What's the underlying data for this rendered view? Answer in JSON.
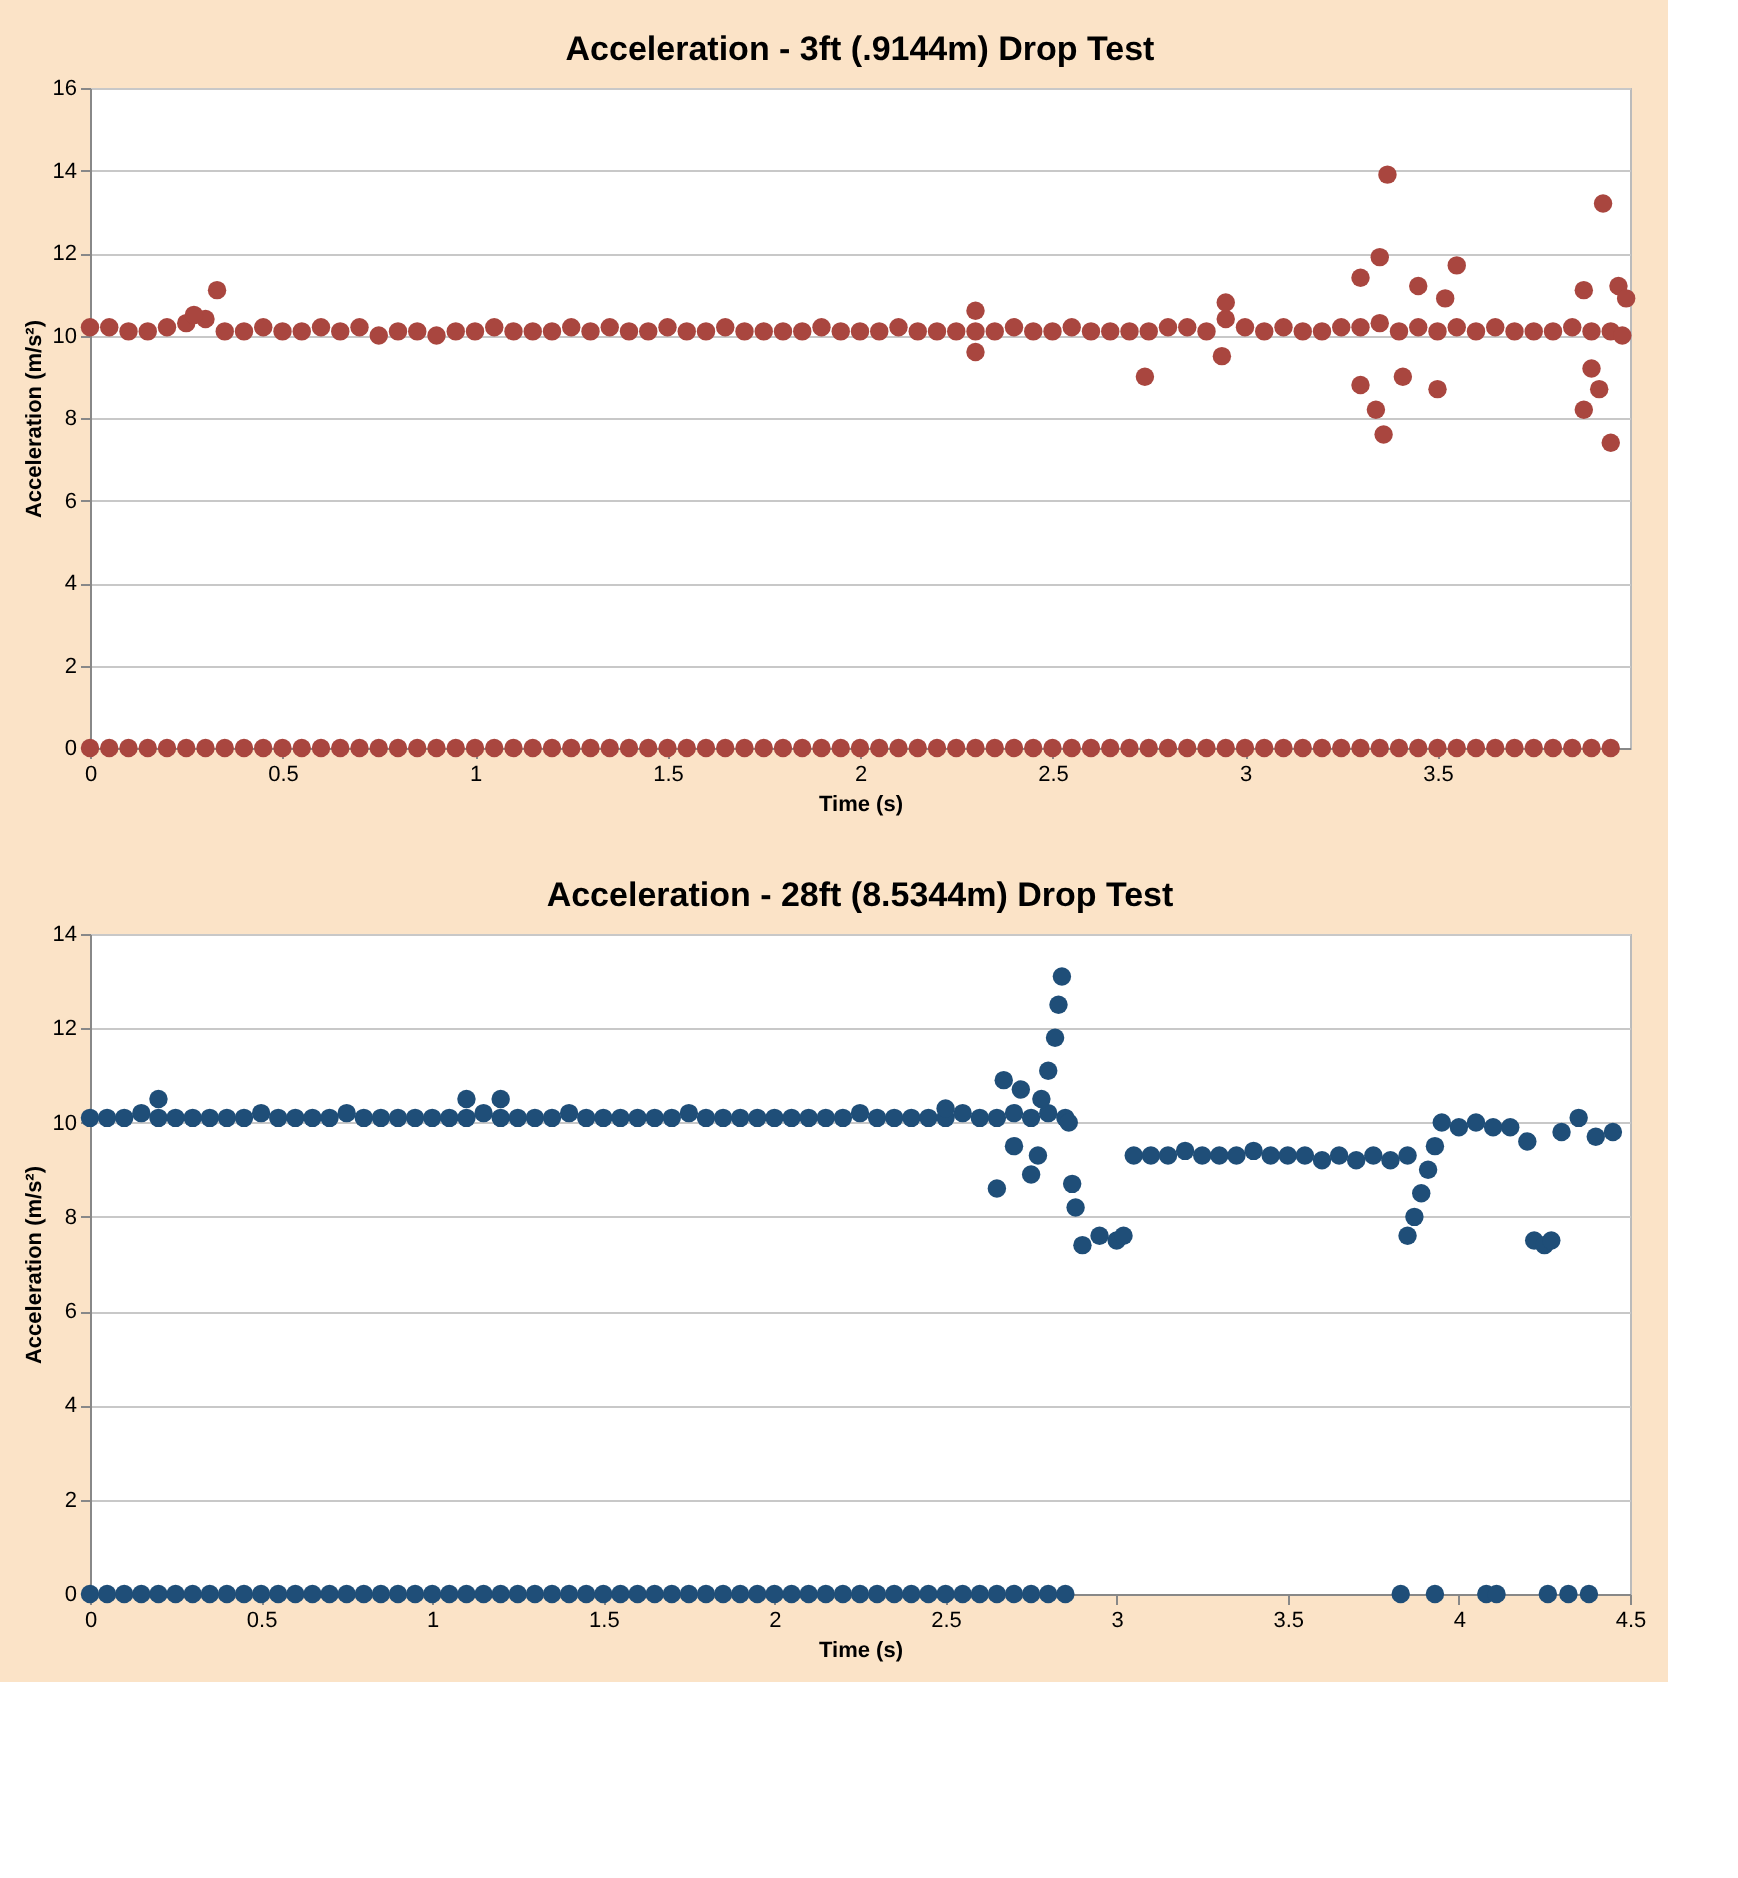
{
  "chart_data": [
    {
      "type": "scatter",
      "title": "Acceleration - 3ft (.9144m) Drop Test",
      "xlabel": "Time (s)",
      "ylabel": "Acceleration (m/s²)",
      "xlim": [
        0,
        4
      ],
      "xticks": [
        0,
        0.5,
        1,
        1.5,
        2,
        2.5,
        3,
        3.5
      ],
      "ylim": [
        0,
        16
      ],
      "yticks": [
        0,
        2,
        4,
        6,
        8,
        10,
        12,
        14,
        16
      ],
      "grid": "y",
      "marker": "circle",
      "series": [
        {
          "color": "#a9463f",
          "x": [
            0,
            0.05,
            0.1,
            0.15,
            0.2,
            0.25,
            0.3,
            0.35,
            0.4,
            0.45,
            0.5,
            0.55,
            0.6,
            0.65,
            0.7,
            0.75,
            0.8,
            0.85,
            0.9,
            0.95,
            1,
            1.05,
            1.1,
            1.15,
            1.2,
            1.25,
            1.3,
            1.35,
            1.4,
            1.45,
            1.5,
            1.55,
            1.6,
            1.65,
            1.7,
            1.75,
            1.8,
            1.85,
            1.9,
            1.95,
            2,
            2.05,
            2.1,
            2.15,
            2.2,
            2.25,
            2.3,
            2.35,
            2.4,
            2.45,
            2.5,
            2.55,
            2.6,
            2.65,
            2.7,
            2.75,
            2.8,
            2.85,
            2.9,
            2.95,
            3,
            3.05,
            3.1,
            3.15,
            3.2,
            3.25,
            3.3,
            3.35,
            3.4,
            3.45,
            3.5,
            3.55,
            3.6,
            3.65,
            3.7,
            3.75,
            3.8,
            3.85,
            3.9,
            3.95
          ],
          "values": [
            10.2,
            10.2,
            10.1,
            10.1,
            10.2,
            10.3,
            10.4,
            10.1,
            10.1,
            10.2,
            10.1,
            10.1,
            10.2,
            10.1,
            10.2,
            10.0,
            10.1,
            10.1,
            10.0,
            10.1,
            10.1,
            10.2,
            10.1,
            10.1,
            10.1,
            10.2,
            10.1,
            10.2,
            10.1,
            10.1,
            10.2,
            10.1,
            10.1,
            10.2,
            10.1,
            10.1,
            10.1,
            10.1,
            10.2,
            10.1,
            10.1,
            10.1,
            10.2,
            10.1,
            10.1,
            10.1,
            10.1,
            10.1,
            10.2,
            10.1,
            10.1,
            10.2,
            10.1,
            10.1,
            10.1,
            10.1,
            10.2,
            10.2,
            10.1,
            10.4,
            10.2,
            10.1,
            10.2,
            10.1,
            10.1,
            10.2,
            10.2,
            10.3,
            10.1,
            10.2,
            10.1,
            10.2,
            10.1,
            10.2,
            10.1,
            10.1,
            10.1,
            10.2,
            10.1,
            10.1
          ]
        },
        {
          "color": "#a9463f",
          "x": [
            0.33,
            0.27,
            2.3,
            2.3,
            2.74,
            2.95,
            2.94,
            3.3,
            3.3,
            3.34,
            3.36,
            3.37,
            3.35,
            3.41,
            3.45,
            3.5,
            3.52,
            3.55,
            3.88,
            3.88,
            3.9,
            3.92,
            3.93,
            3.95,
            3.97,
            3.98,
            3.99
          ],
          "values": [
            11.1,
            10.5,
            10.6,
            9.6,
            9.0,
            10.8,
            9.5,
            11.4,
            8.8,
            8.2,
            7.6,
            13.9,
            11.9,
            9.0,
            11.2,
            8.7,
            10.9,
            11.7,
            11.1,
            8.2,
            9.2,
            8.7,
            13.2,
            7.4,
            11.2,
            10.0,
            10.9
          ]
        },
        {
          "color": "#a9463f",
          "x": [
            0,
            0.05,
            0.1,
            0.15,
            0.2,
            0.25,
            0.3,
            0.35,
            0.4,
            0.45,
            0.5,
            0.55,
            0.6,
            0.65,
            0.7,
            0.75,
            0.8,
            0.85,
            0.9,
            0.95,
            1,
            1.05,
            1.1,
            1.15,
            1.2,
            1.25,
            1.3,
            1.35,
            1.4,
            1.45,
            1.5,
            1.55,
            1.6,
            1.65,
            1.7,
            1.75,
            1.8,
            1.85,
            1.9,
            1.95,
            2,
            2.05,
            2.1,
            2.15,
            2.2,
            2.25,
            2.3,
            2.35,
            2.4,
            2.45,
            2.5,
            2.55,
            2.6,
            2.65,
            2.7,
            2.75,
            2.8,
            2.85,
            2.9,
            2.95,
            3,
            3.05,
            3.1,
            3.15,
            3.2,
            3.25,
            3.3,
            3.35,
            3.4,
            3.45,
            3.5,
            3.55,
            3.6,
            3.65,
            3.7,
            3.75,
            3.8,
            3.85,
            3.9,
            3.95
          ],
          "values": [
            0,
            0,
            0,
            0,
            0,
            0,
            0,
            0,
            0,
            0,
            0,
            0,
            0,
            0,
            0,
            0,
            0,
            0,
            0,
            0,
            0,
            0,
            0,
            0,
            0,
            0,
            0,
            0,
            0,
            0,
            0,
            0,
            0,
            0,
            0,
            0,
            0,
            0,
            0,
            0,
            0,
            0,
            0,
            0,
            0,
            0,
            0,
            0,
            0,
            0,
            0,
            0,
            0,
            0,
            0,
            0,
            0,
            0,
            0,
            0,
            0,
            0,
            0,
            0,
            0,
            0,
            0,
            0,
            0,
            0,
            0,
            0,
            0,
            0,
            0,
            0,
            0,
            0,
            0,
            0
          ]
        }
      ]
    },
    {
      "type": "scatter",
      "title": "Acceleration - 28ft (8.5344m) Drop Test",
      "xlabel": "Time (s)",
      "ylabel": "Acceleration (m/s²)",
      "xlim": [
        0,
        4.5
      ],
      "xticks": [
        0,
        0.5,
        1,
        1.5,
        2,
        2.5,
        3,
        3.5,
        4,
        4.5
      ],
      "ylim": [
        0,
        14
      ],
      "yticks": [
        0,
        2,
        4,
        6,
        8,
        10,
        12,
        14
      ],
      "grid": "y",
      "marker": "circle",
      "series": [
        {
          "color": "#1f4e78",
          "x": [
            0,
            0.05,
            0.1,
            0.15,
            0.2,
            0.25,
            0.3,
            0.35,
            0.4,
            0.45,
            0.5,
            0.55,
            0.6,
            0.65,
            0.7,
            0.75,
            0.8,
            0.85,
            0.9,
            0.95,
            1,
            1.05,
            1.1,
            1.15,
            1.2,
            1.25,
            1.3,
            1.35,
            1.4,
            1.45,
            1.5,
            1.55,
            1.6,
            1.65,
            1.7,
            1.75,
            1.8,
            1.85,
            1.9,
            1.95,
            2,
            2.05,
            2.1,
            2.15,
            2.2,
            2.25,
            2.3,
            2.35,
            2.4,
            2.45,
            2.5,
            2.55,
            2.6,
            2.65,
            2.7,
            2.75,
            2.8,
            2.85,
            3.05,
            3.1,
            3.15,
            3.2,
            3.25,
            3.3,
            3.35,
            3.4,
            3.45,
            3.5,
            3.55,
            3.6,
            3.65,
            3.7,
            3.75,
            3.8,
            3.85,
            4.0,
            4.05,
            4.1,
            4.15,
            4.2,
            4.3,
            4.35,
            4.4,
            4.45
          ],
          "values": [
            10.1,
            10.1,
            10.1,
            10.2,
            10.1,
            10.1,
            10.1,
            10.1,
            10.1,
            10.1,
            10.2,
            10.1,
            10.1,
            10.1,
            10.1,
            10.2,
            10.1,
            10.1,
            10.1,
            10.1,
            10.1,
            10.1,
            10.1,
            10.2,
            10.1,
            10.1,
            10.1,
            10.1,
            10.2,
            10.1,
            10.1,
            10.1,
            10.1,
            10.1,
            10.1,
            10.2,
            10.1,
            10.1,
            10.1,
            10.1,
            10.1,
            10.1,
            10.1,
            10.1,
            10.1,
            10.2,
            10.1,
            10.1,
            10.1,
            10.1,
            10.1,
            10.2,
            10.1,
            10.1,
            10.2,
            10.1,
            10.2,
            10.1,
            9.3,
            9.3,
            9.3,
            9.4,
            9.3,
            9.3,
            9.3,
            9.4,
            9.3,
            9.3,
            9.3,
            9.2,
            9.3,
            9.2,
            9.3,
            9.2,
            9.3,
            9.9,
            10.0,
            9.9,
            9.9,
            9.6,
            9.8,
            10.1,
            9.7,
            9.8
          ]
        },
        {
          "color": "#1f4e78",
          "x": [
            0.2,
            1.1,
            1.2,
            2.5,
            2.65,
            2.67,
            2.72,
            2.7,
            2.75,
            2.77,
            2.78,
            2.8,
            2.82,
            2.83,
            2.84,
            2.86,
            2.87,
            2.88,
            2.9,
            2.95,
            3.0,
            3.02,
            3.85,
            3.87,
            3.89,
            3.91,
            3.93,
            3.95,
            4.22,
            4.25,
            4.27
          ],
          "values": [
            10.5,
            10.5,
            10.5,
            10.3,
            8.6,
            10.9,
            10.7,
            9.5,
            8.9,
            9.3,
            10.5,
            11.1,
            11.8,
            12.5,
            13.1,
            10.0,
            8.7,
            8.2,
            7.4,
            7.6,
            7.5,
            7.6,
            7.6,
            8.0,
            8.5,
            9.0,
            9.5,
            10.0,
            7.5,
            7.4,
            7.5
          ]
        },
        {
          "color": "#1f4e78",
          "x": [
            0,
            0.05,
            0.1,
            0.15,
            0.2,
            0.25,
            0.3,
            0.35,
            0.4,
            0.45,
            0.5,
            0.55,
            0.6,
            0.65,
            0.7,
            0.75,
            0.8,
            0.85,
            0.9,
            0.95,
            1,
            1.05,
            1.1,
            1.15,
            1.2,
            1.25,
            1.3,
            1.35,
            1.4,
            1.45,
            1.5,
            1.55,
            1.6,
            1.65,
            1.7,
            1.75,
            1.8,
            1.85,
            1.9,
            1.95,
            2,
            2.05,
            2.1,
            2.15,
            2.2,
            2.25,
            2.3,
            2.35,
            2.4,
            2.45,
            2.5,
            2.55,
            2.6,
            2.65,
            2.7,
            2.75,
            2.8,
            2.85,
            3.83,
            3.93,
            4.08,
            4.11,
            4.26,
            4.32,
            4.38
          ],
          "values": [
            0,
            0,
            0,
            0,
            0,
            0,
            0,
            0,
            0,
            0,
            0,
            0,
            0,
            0,
            0,
            0,
            0,
            0,
            0,
            0,
            0,
            0,
            0,
            0,
            0,
            0,
            0,
            0,
            0,
            0,
            0,
            0,
            0,
            0,
            0,
            0,
            0,
            0,
            0,
            0,
            0,
            0,
            0,
            0,
            0,
            0,
            0,
            0,
            0,
            0,
            0,
            0,
            0,
            0,
            0,
            0,
            0,
            0,
            0,
            0,
            0,
            0,
            0,
            0,
            0
          ]
        }
      ]
    }
  ]
}
